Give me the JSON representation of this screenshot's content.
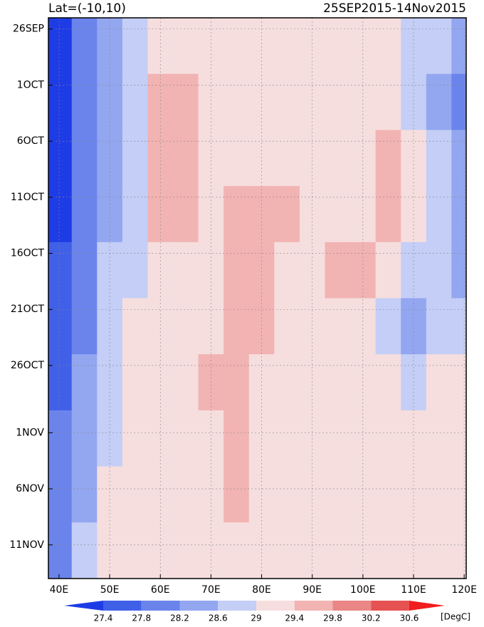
{
  "chart_data": {
    "type": "heatmap",
    "title_left": "Lat=(-10,10)",
    "title_right": "25SEP2015-14Nov2015",
    "x": [
      40,
      45,
      50,
      55,
      60,
      65,
      70,
      75,
      80,
      85,
      90,
      95,
      100,
      105,
      110,
      115,
      120
    ],
    "y": [
      2.5,
      7.5,
      12.5,
      17.5,
      22.5,
      27.5,
      32.5,
      37.5,
      42.5,
      47.5
    ],
    "z": [
      [
        27.2,
        27.8,
        28.4,
        28.8,
        29.0,
        29.1,
        29.2,
        29.1,
        29.0,
        29.0,
        29.1,
        29.1,
        29.0,
        29.0,
        28.9,
        28.6,
        28.2
      ],
      [
        27.2,
        27.8,
        28.3,
        28.8,
        29.4,
        29.5,
        29.3,
        29.1,
        29.0,
        29.1,
        29.1,
        29.2,
        29.1,
        29.0,
        28.8,
        28.4,
        28.0
      ],
      [
        27.2,
        27.9,
        28.4,
        28.9,
        29.5,
        29.6,
        29.2,
        29.1,
        29.2,
        29.2,
        29.3,
        29.2,
        29.3,
        29.4,
        29.0,
        28.6,
        28.2
      ],
      [
        27.3,
        28.0,
        28.5,
        28.9,
        29.4,
        29.5,
        29.2,
        29.6,
        29.6,
        29.5,
        29.3,
        29.2,
        29.3,
        29.5,
        29.0,
        28.6,
        28.3
      ],
      [
        27.4,
        28.0,
        28.6,
        28.9,
        29.0,
        29.2,
        29.2,
        29.5,
        29.4,
        29.2,
        29.2,
        29.4,
        29.5,
        29.3,
        28.9,
        28.6,
        28.2
      ],
      [
        27.5,
        28.1,
        28.7,
        29.0,
        29.1,
        29.2,
        29.3,
        29.6,
        29.4,
        29.2,
        29.1,
        29.2,
        29.1,
        28.9,
        28.4,
        28.8,
        28.8
      ],
      [
        27.6,
        28.2,
        28.8,
        29.0,
        29.1,
        29.2,
        29.4,
        29.6,
        29.3,
        29.2,
        29.1,
        29.0,
        29.1,
        29.0,
        28.9,
        29.0,
        29.0
      ],
      [
        27.8,
        28.4,
        28.8,
        29.1,
        29.2,
        29.3,
        29.3,
        29.5,
        29.2,
        29.2,
        29.1,
        29.0,
        29.0,
        29.0,
        29.1,
        29.1,
        29.1
      ],
      [
        27.8,
        28.5,
        29.0,
        29.2,
        29.2,
        29.2,
        29.2,
        29.4,
        29.1,
        29.0,
        29.1,
        29.0,
        29.0,
        29.1,
        29.1,
        29.2,
        29.1
      ],
      [
        28.0,
        28.7,
        29.0,
        29.2,
        29.1,
        29.2,
        29.2,
        29.2,
        29.1,
        29.0,
        29.0,
        29.1,
        29.1,
        29.1,
        29.2,
        29.2,
        29.2
      ]
    ],
    "xlim": [
      37.9,
      120.4
    ],
    "ylim": [
      50,
      0
    ],
    "xticks": [
      {
        "value": 40,
        "label": "40E"
      },
      {
        "value": 50,
        "label": "50E"
      },
      {
        "value": 60,
        "label": "60E"
      },
      {
        "value": 70,
        "label": "70E"
      },
      {
        "value": 80,
        "label": "80E"
      },
      {
        "value": 90,
        "label": "90E"
      },
      {
        "value": 100,
        "label": "100E"
      },
      {
        "value": 110,
        "label": "110E"
      },
      {
        "value": 120,
        "label": "120E"
      }
    ],
    "yticks": [
      {
        "value": 1,
        "label": "26SEP"
      },
      {
        "value": 6,
        "label": "1OCT"
      },
      {
        "value": 11,
        "label": "6OCT"
      },
      {
        "value": 16,
        "label": "11OCT"
      },
      {
        "value": 21,
        "label": "16OCT"
      },
      {
        "value": 26,
        "label": "21OCT"
      },
      {
        "value": 31,
        "label": "26OCT"
      },
      {
        "value": 37,
        "label": "1NOV"
      },
      {
        "value": 42,
        "label": "6NOV"
      },
      {
        "value": 47,
        "label": "11NOV"
      }
    ],
    "levels": [
      27.4,
      27.8,
      28.2,
      28.6,
      29,
      29.4,
      29.8,
      30.2,
      30.6
    ],
    "colors": [
      "#1e3ce6",
      "#4060e8",
      "#6a84ec",
      "#93a6f0",
      "#c4cef6",
      "#f6dede",
      "#f2b3b3",
      "#ea8686",
      "#e65252",
      "#f01e1e"
    ],
    "colorbar_unit": "[DegC]",
    "grid": true
  }
}
